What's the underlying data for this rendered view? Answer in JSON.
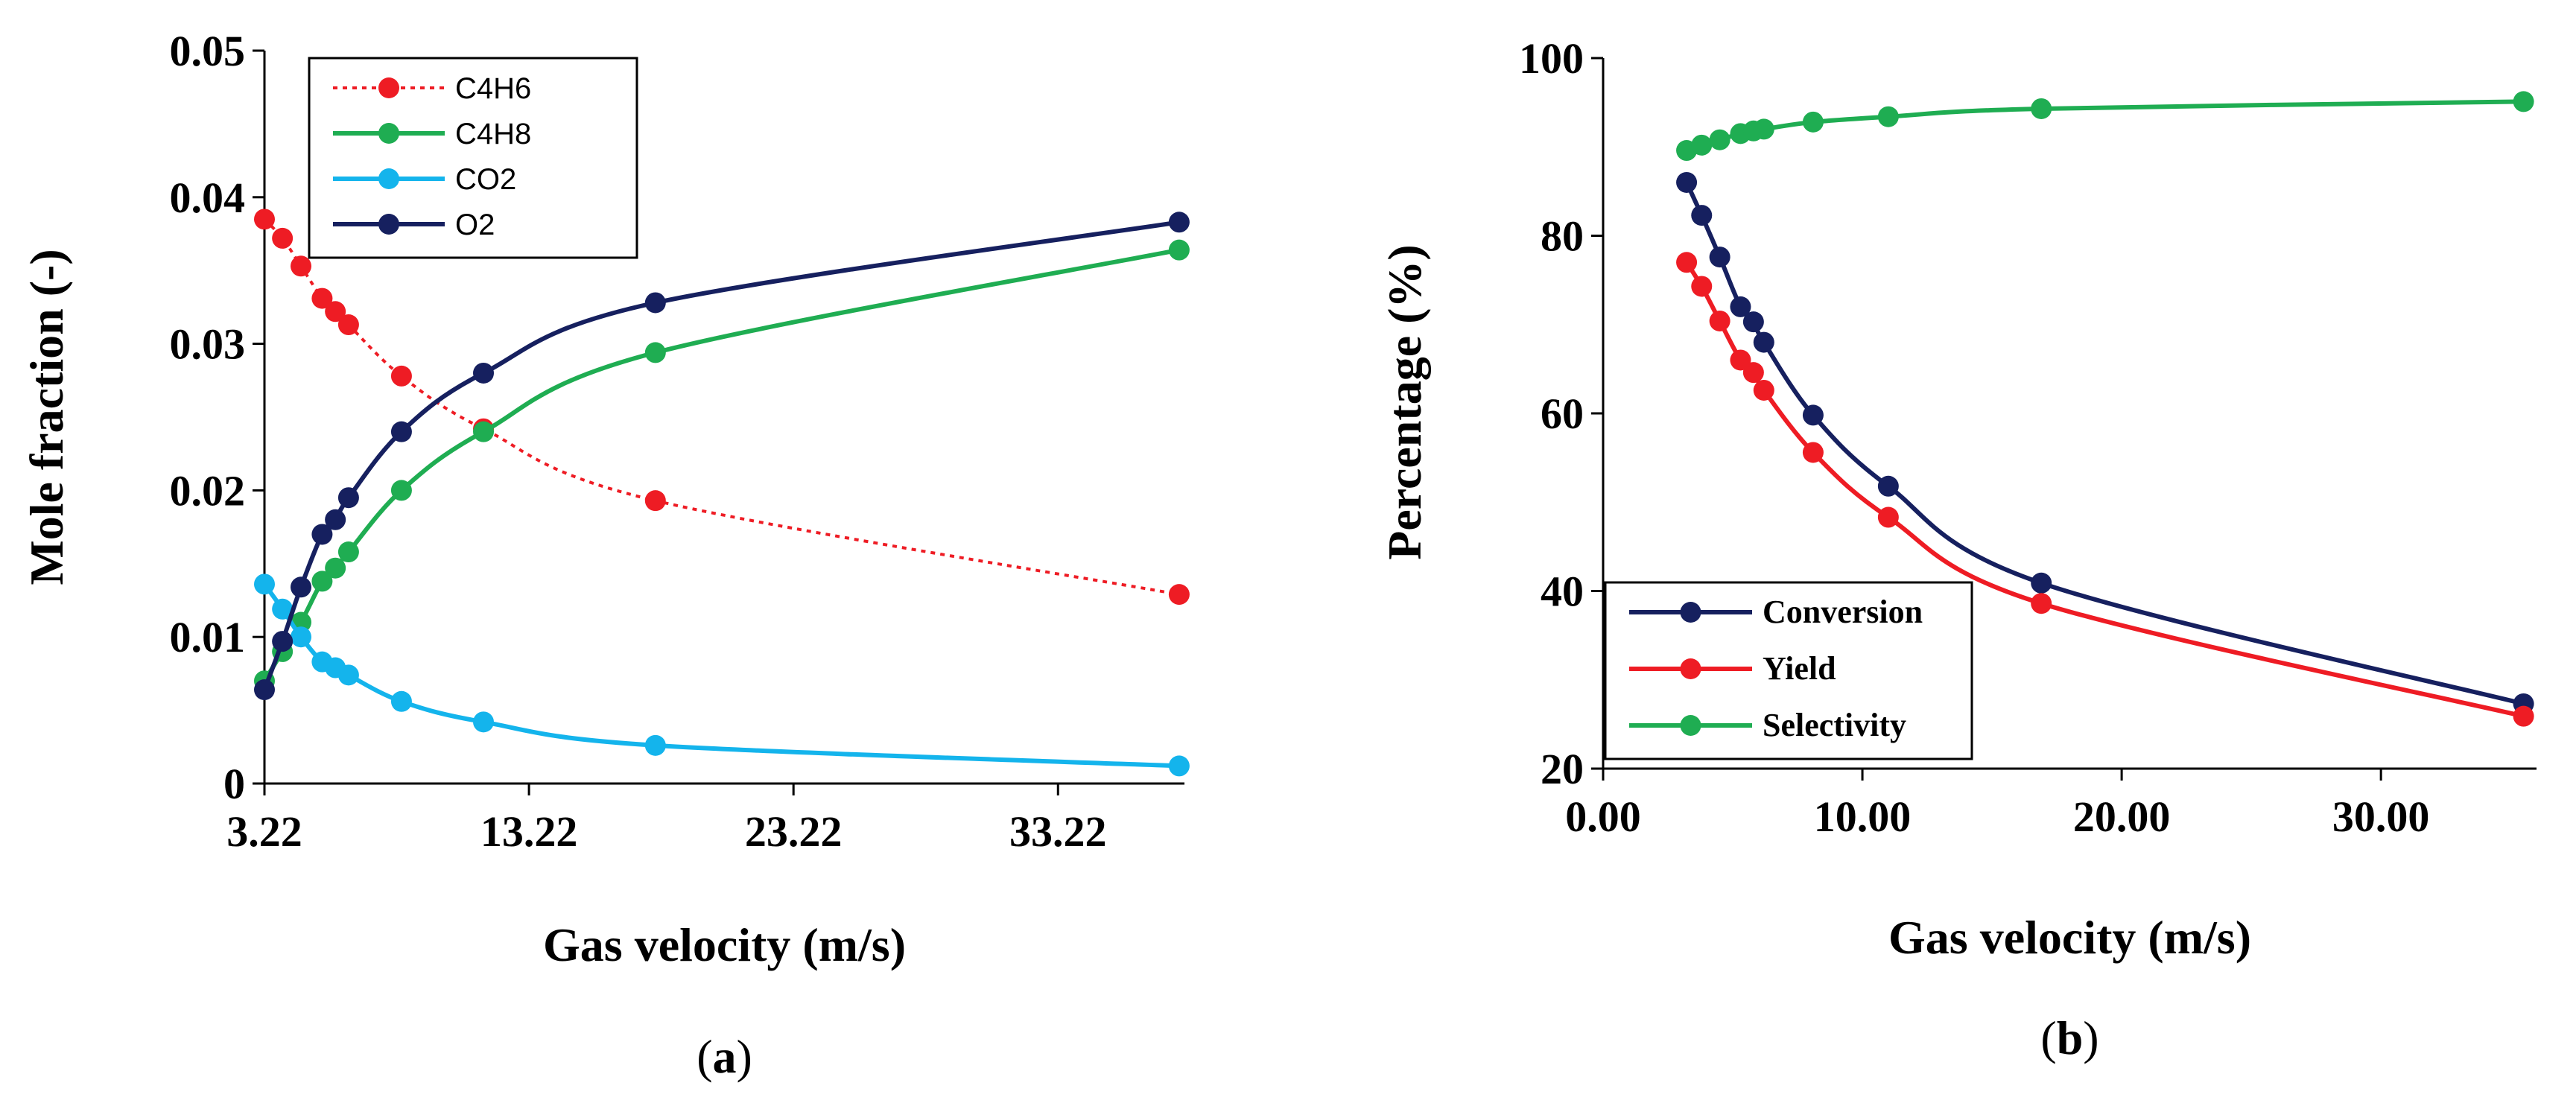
{
  "chart_data": [
    {
      "type": "line",
      "panel_label": "a",
      "xlabel": "Gas velocity (m/s)",
      "ylabel": "Mole fraction (-)",
      "xlim": [
        3.22,
        38
      ],
      "ylim": [
        0,
        0.05
      ],
      "xticks": [
        3.22,
        13.22,
        23.22,
        33.22
      ],
      "xtick_labels": [
        "3.22",
        "13.22",
        "23.22",
        "33.22"
      ],
      "yticks": [
        0,
        0.01,
        0.02,
        0.03,
        0.04,
        0.05
      ],
      "ytick_labels": [
        "0",
        "0.01",
        "0.02",
        "0.03",
        "0.04",
        "0.05"
      ],
      "legend_position": "top-left",
      "series": [
        {
          "name": "C4H6",
          "color": "#ee1c24",
          "dashed": true,
          "x": [
            3.22,
            3.9,
            4.6,
            5.4,
            5.9,
            6.4,
            8.4,
            11.5,
            18.0,
            37.8
          ],
          "y": [
            0.0385,
            0.0372,
            0.0353,
            0.0331,
            0.0322,
            0.0313,
            0.0278,
            0.0242,
            0.0193,
            0.0129
          ]
        },
        {
          "name": "C4H8",
          "color": "#1fad52",
          "x": [
            3.22,
            3.9,
            4.6,
            5.4,
            5.9,
            6.4,
            8.4,
            11.5,
            18.0,
            37.8
          ],
          "y": [
            0.007,
            0.009,
            0.011,
            0.0138,
            0.0147,
            0.0158,
            0.02,
            0.024,
            0.0294,
            0.0364
          ]
        },
        {
          "name": "CO2",
          "color": "#14b4ec",
          "x": [
            3.22,
            3.9,
            4.6,
            5.4,
            5.9,
            6.4,
            8.4,
            11.5,
            18.0,
            37.8
          ],
          "y": [
            0.0136,
            0.0119,
            0.01,
            0.0083,
            0.0079,
            0.0074,
            0.0056,
            0.0042,
            0.0026,
            0.0012
          ]
        },
        {
          "name": "O2",
          "color": "#16205f",
          "x": [
            3.22,
            3.9,
            4.6,
            5.4,
            5.9,
            6.4,
            8.4,
            11.5,
            18.0,
            37.8
          ],
          "y": [
            0.0064,
            0.0097,
            0.0134,
            0.017,
            0.018,
            0.0195,
            0.024,
            0.028,
            0.0328,
            0.0383
          ]
        }
      ]
    },
    {
      "type": "line",
      "panel_label": "b",
      "xlabel": "Gas velocity (m/s)",
      "ylabel": "Percentage (%)",
      "xlim": [
        0,
        36
      ],
      "ylim": [
        20,
        100
      ],
      "xticks": [
        0,
        10,
        20,
        30
      ],
      "xtick_labels": [
        "0.00",
        "10.00",
        "20.00",
        "30.00"
      ],
      "yticks": [
        20,
        40,
        60,
        80,
        100
      ],
      "ytick_labels": [
        "20",
        "40",
        "60",
        "80",
        "100"
      ],
      "legend_position": "bottom-left",
      "series": [
        {
          "name": "Conversion",
          "color": "#16205f",
          "x": [
            3.22,
            3.8,
            4.5,
            5.3,
            5.8,
            6.2,
            8.1,
            11.0,
            16.9,
            35.5
          ],
          "y": [
            86.0,
            82.3,
            77.6,
            72.0,
            70.3,
            68.0,
            59.8,
            51.8,
            40.9,
            27.3
          ]
        },
        {
          "name": "Yield",
          "color": "#ee1c24",
          "x": [
            3.22,
            3.8,
            4.5,
            5.3,
            5.8,
            6.2,
            8.1,
            11.0,
            16.9,
            35.5
          ],
          "y": [
            77.0,
            74.3,
            70.4,
            66.0,
            64.6,
            62.6,
            55.6,
            48.3,
            38.6,
            25.9
          ]
        },
        {
          "name": "Selectivity",
          "color": "#1fad52",
          "x": [
            3.22,
            3.8,
            4.5,
            5.3,
            5.8,
            6.2,
            8.1,
            11.0,
            16.9,
            35.5
          ],
          "y": [
            89.6,
            90.2,
            90.8,
            91.5,
            91.8,
            92.0,
            92.8,
            93.4,
            94.3,
            95.1
          ]
        }
      ]
    }
  ]
}
